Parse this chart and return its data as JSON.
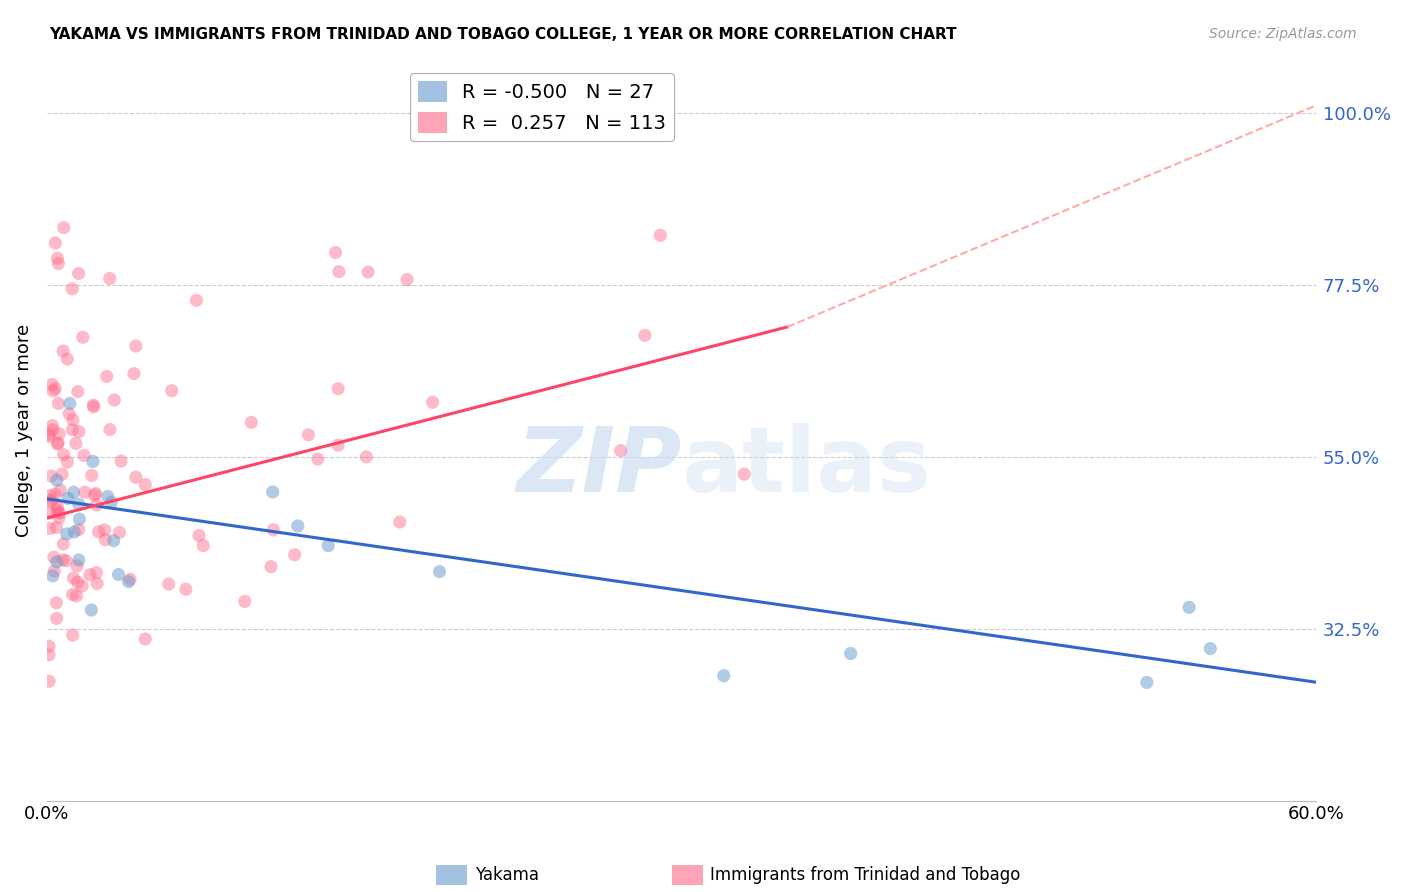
{
  "title": "YAKAMA VS IMMIGRANTS FROM TRINIDAD AND TOBAGO COLLEGE, 1 YEAR OR MORE CORRELATION CHART",
  "source": "Source: ZipAtlas.com",
  "xmin": 0.0,
  "xmax": 60.0,
  "ymin": 10.0,
  "ymax": 107.0,
  "ylabel_ticks": [
    32.5,
    55.0,
    77.5,
    100.0
  ],
  "legend_label1": "Yakama",
  "legend_label2": "Immigrants from Trinidad and Tobago",
  "R1": -0.5,
  "N1": 27,
  "R2": 0.257,
  "N2": 113,
  "color_blue": "#6699CC",
  "color_pink": "#FF6688",
  "color_blue_line": "#3366CC",
  "color_pink_line": "#FF4466",
  "color_dashed": "#FFAAAA",
  "color_axis_labels": "#3366CC",
  "color_grid": "#CCCCCC",
  "ylabel": "College, 1 year or more",
  "watermark_zip": "ZIP",
  "watermark_atlas": "atlas",
  "background_color": "#FFFFFF",
  "blue_line_y0": 49.5,
  "blue_line_y1": 25.5,
  "pink_line_y0": 47.0,
  "pink_line_x1_solid": 35.0,
  "pink_line_y1_solid": 72.0,
  "pink_line_y1_dashed": 101.0
}
